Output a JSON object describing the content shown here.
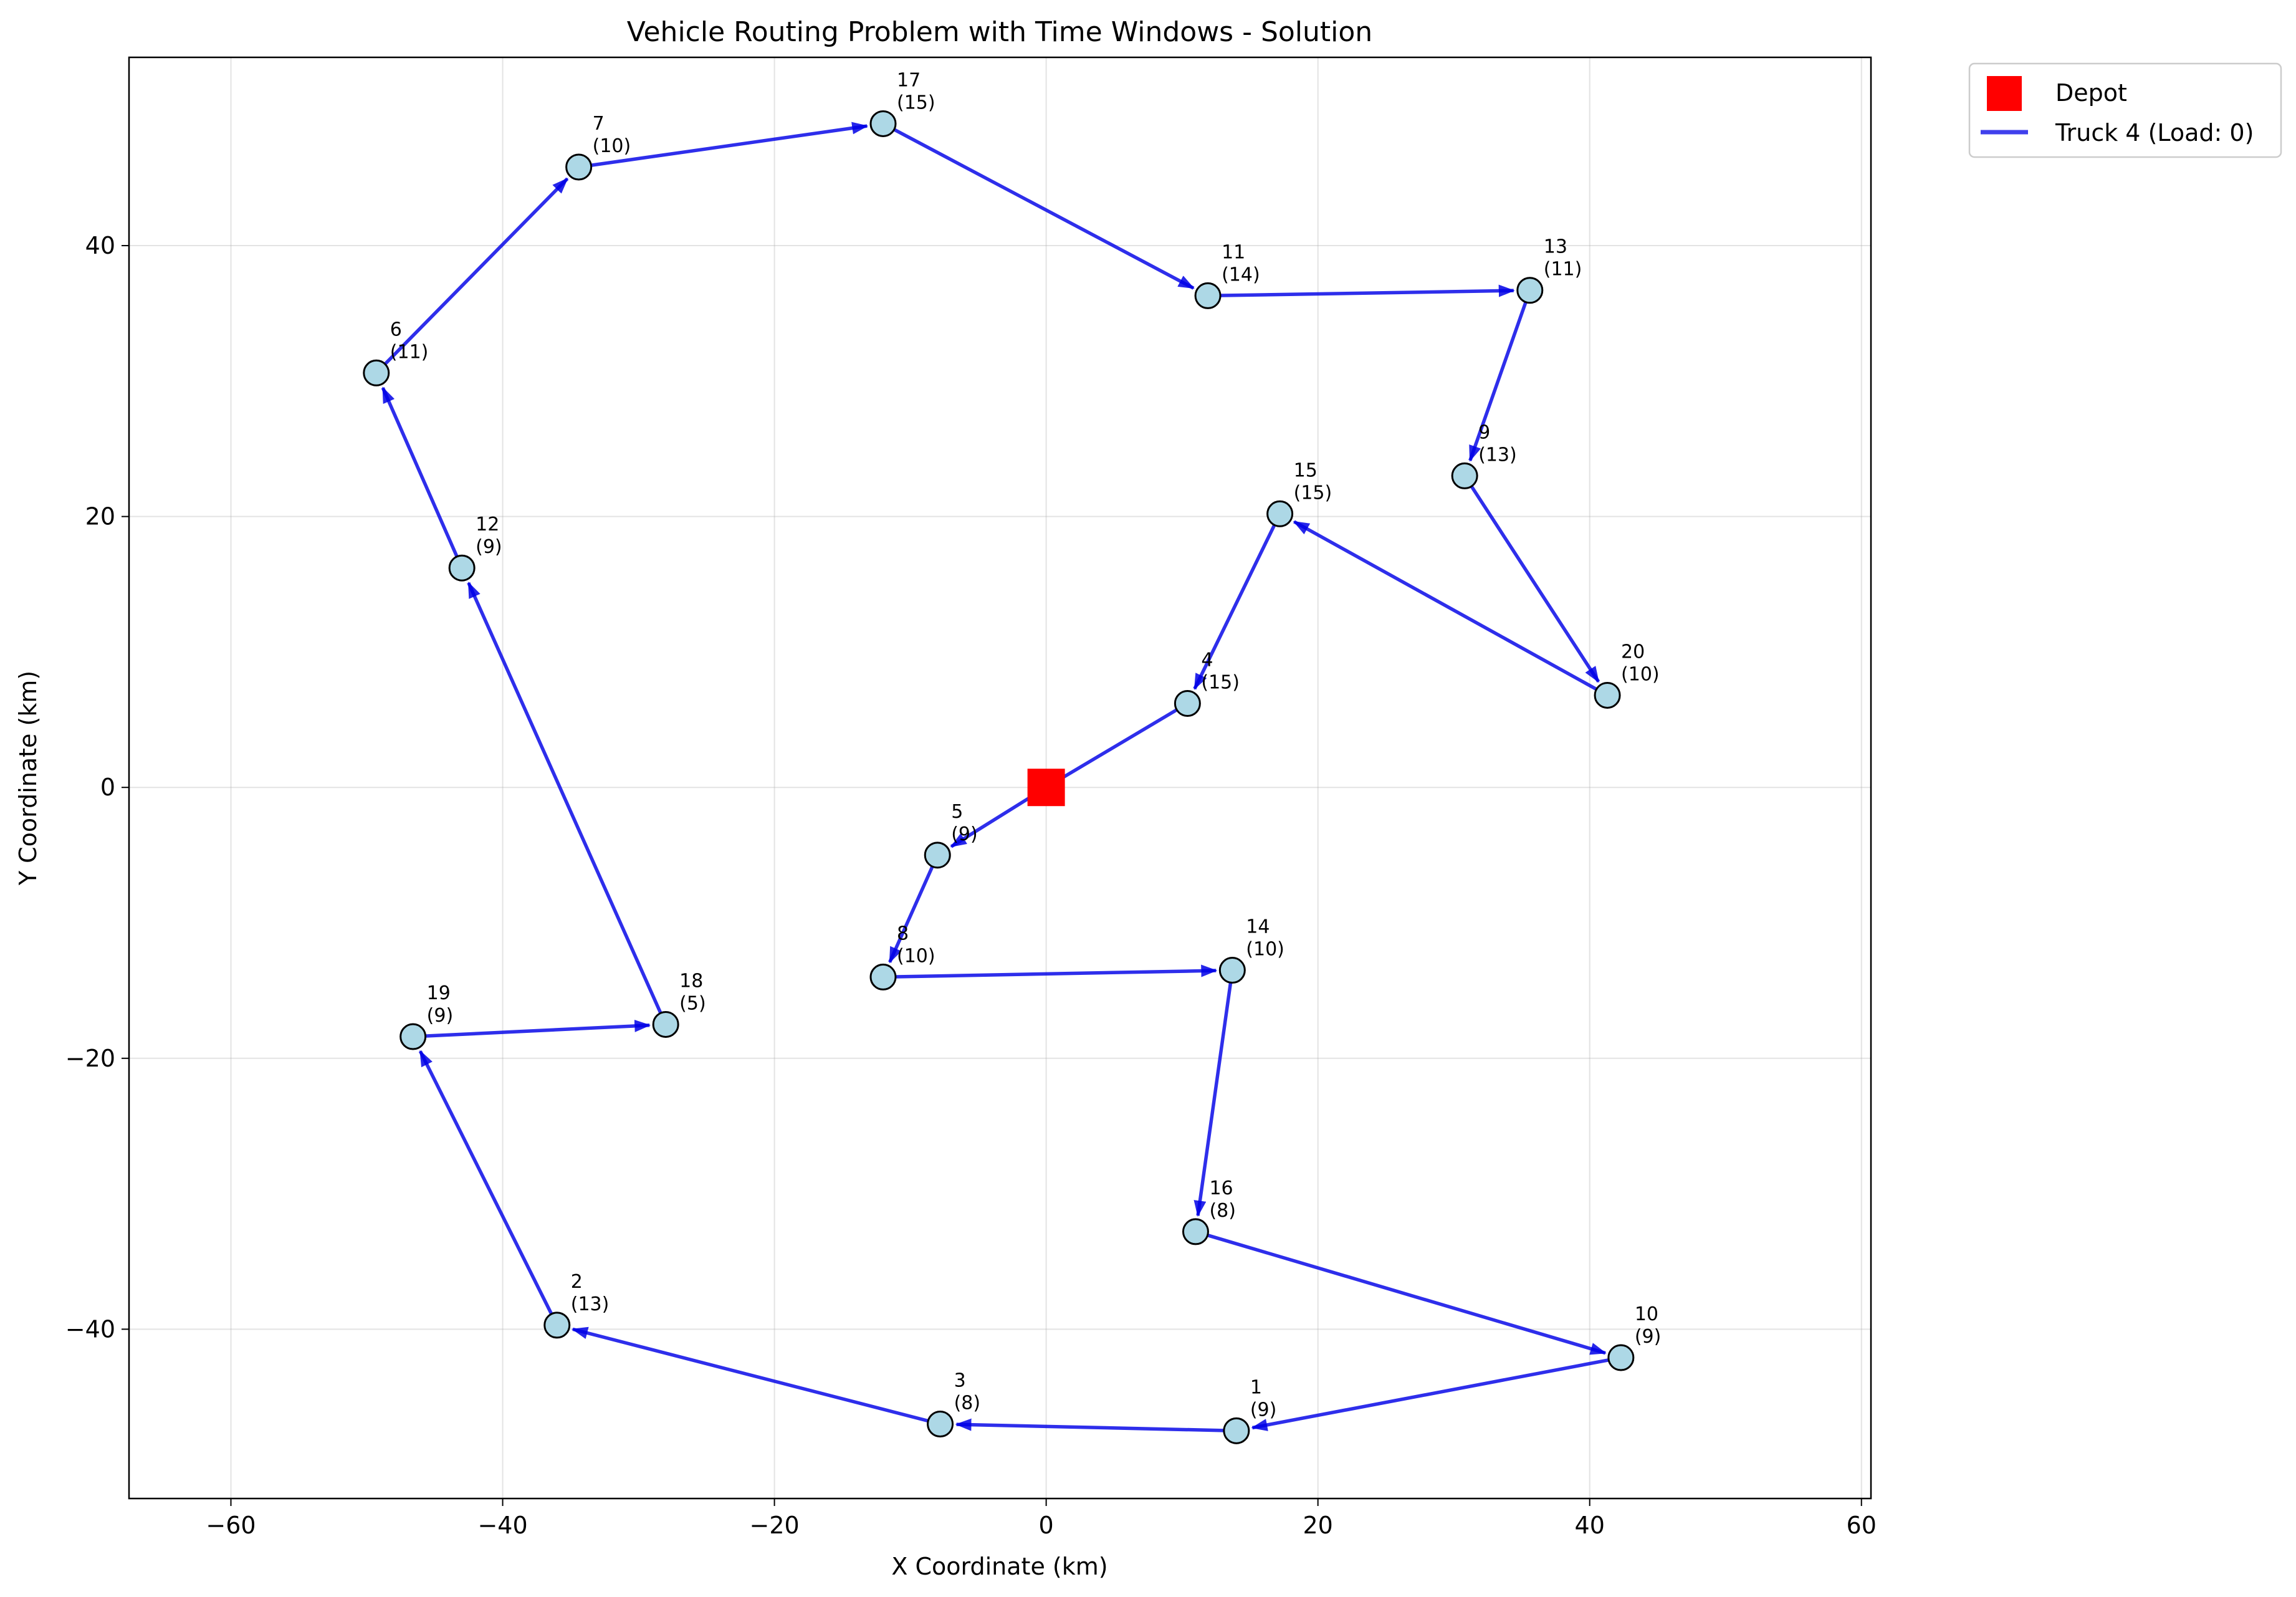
{
  "chart_data": {
    "type": "scatter",
    "title": "Vehicle Routing Problem with Time Windows - Solution",
    "xlabel": "X Coordinate (km)",
    "ylabel": "Y Coordinate (km)",
    "xlim": [
      -67.5,
      60.7
    ],
    "ylim": [
      -52.5,
      53.9
    ],
    "xticks": [
      -60,
      -40,
      -20,
      0,
      20,
      40,
      60
    ],
    "yticks": [
      -40,
      -20,
      0,
      20,
      40
    ],
    "grid": true,
    "legend_position": "outside top-right",
    "colors": {
      "depot": "#ff0000",
      "route": "#0000e6",
      "customer": "#add8e6"
    },
    "depot": {
      "x": 0,
      "y": 0,
      "label": "Depot"
    },
    "customers": [
      {
        "id": "1",
        "demand": "(9)",
        "x": 14.0,
        "y": -47.5
      },
      {
        "id": "2",
        "demand": "(13)",
        "x": -36.0,
        "y": -39.7
      },
      {
        "id": "3",
        "demand": "(8)",
        "x": -7.8,
        "y": -47.0
      },
      {
        "id": "4",
        "demand": "(15)",
        "x": 10.4,
        "y": 6.2
      },
      {
        "id": "5",
        "demand": "(9)",
        "x": -8.0,
        "y": -5.0
      },
      {
        "id": "6",
        "demand": "(11)",
        "x": -49.3,
        "y": 30.6
      },
      {
        "id": "7",
        "demand": "(10)",
        "x": -34.4,
        "y": 45.8
      },
      {
        "id": "8",
        "demand": "(10)",
        "x": -12.0,
        "y": -14.0
      },
      {
        "id": "9",
        "demand": "(13)",
        "x": 30.8,
        "y": 23.0
      },
      {
        "id": "10",
        "demand": "(9)",
        "x": 42.3,
        "y": -42.1
      },
      {
        "id": "11",
        "demand": "(14)",
        "x": 11.9,
        "y": 36.3
      },
      {
        "id": "12",
        "demand": "(9)",
        "x": -43.0,
        "y": 16.2
      },
      {
        "id": "13",
        "demand": "(11)",
        "x": 35.6,
        "y": 36.7
      },
      {
        "id": "14",
        "demand": "(10)",
        "x": 13.7,
        "y": -13.5
      },
      {
        "id": "15",
        "demand": "(15)",
        "x": 17.2,
        "y": 20.2
      },
      {
        "id": "16",
        "demand": "(8)",
        "x": 11.0,
        "y": -32.8
      },
      {
        "id": "17",
        "demand": "(15)",
        "x": -12.0,
        "y": 49.0
      },
      {
        "id": "18",
        "demand": "(5)",
        "x": -28.0,
        "y": -17.5
      },
      {
        "id": "19",
        "demand": "(9)",
        "x": -46.6,
        "y": -18.4
      },
      {
        "id": "20",
        "demand": "(10)",
        "x": 41.3,
        "y": 6.8
      }
    ],
    "series": [
      {
        "name": "Truck 4 (Load: 0)",
        "route": [
          "depot",
          "5",
          "8",
          "14",
          "16",
          "10",
          "1",
          "3",
          "2",
          "19",
          "18",
          "12",
          "6",
          "7",
          "17",
          "11",
          "13",
          "9",
          "20",
          "15",
          "4",
          "depot"
        ]
      }
    ]
  }
}
